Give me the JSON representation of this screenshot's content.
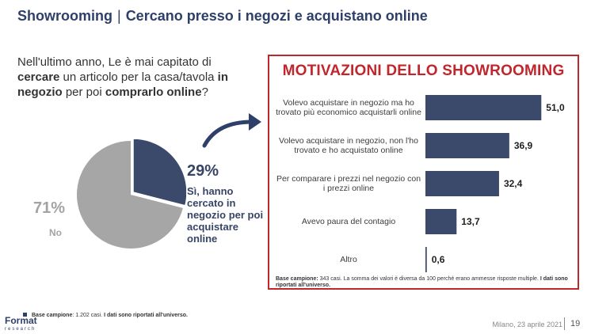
{
  "header": {
    "highlight": "Showrooming",
    "separator": "|",
    "subtitle": "Cercano presso i negozi e acquistano online"
  },
  "question": {
    "p1": "Nell'ultimo anno, Le è mai capitato di ",
    "b1": "cercare",
    "p2": " un articolo per la casa/tavola ",
    "b2": "in negozio",
    "p3": " per poi ",
    "b3": "comprarlo online",
    "p4": "?"
  },
  "pie": {
    "yes_pct_label": "29%",
    "yes_label": "Sì, hanno cercato in negozio per poi acquistare online",
    "no_pct_label": "71%",
    "no_label": "No",
    "colors": {
      "yes": "#3b4a6b",
      "no": "#a6a6a6"
    }
  },
  "panel": {
    "title": "MOTIVAZIONI DELLO SHOWROOMING",
    "note_bold": "Base campione:",
    "note_text": " 343 casi. La somma dei valori è diversa da 100 perché erano ammesse risposte multiple. ",
    "note_bold2": "I dati sono riportati all'universo."
  },
  "chart_data": [
    {
      "type": "pie",
      "categories": [
        "Sì, hanno cercato in negozio per poi acquistare online",
        "No"
      ],
      "values": [
        29,
        71
      ]
    },
    {
      "type": "bar",
      "orientation": "horizontal",
      "title": "MOTIVAZIONI DELLO SHOWROOMING",
      "categories": [
        "Volevo acquistare in negozio ma ho trovato più economico acquistarli online",
        "Volevo acquistare in negozio, non l'ho trovato e ho acquistato online",
        "Per comparare i prezzi nel negozio con i prezzi online",
        "Avevo paura del contagio",
        "Altro"
      ],
      "values": [
        51.0,
        36.9,
        32.4,
        13.7,
        0.6
      ],
      "value_labels": [
        "51,0",
        "36,9",
        "32,4",
        "13,7",
        "0,6"
      ],
      "color": "#3b4a6b",
      "xlim": [
        0,
        55
      ]
    }
  ],
  "footer": {
    "note_bold": "Base campione",
    "note_text": ": 1.202 casi. ",
    "note_bold2": "I dati sono riportati all'universo.",
    "logo_main": "Format",
    "logo_sub": "research",
    "date": "Milano, 23 aprile 2021",
    "page": "19"
  }
}
